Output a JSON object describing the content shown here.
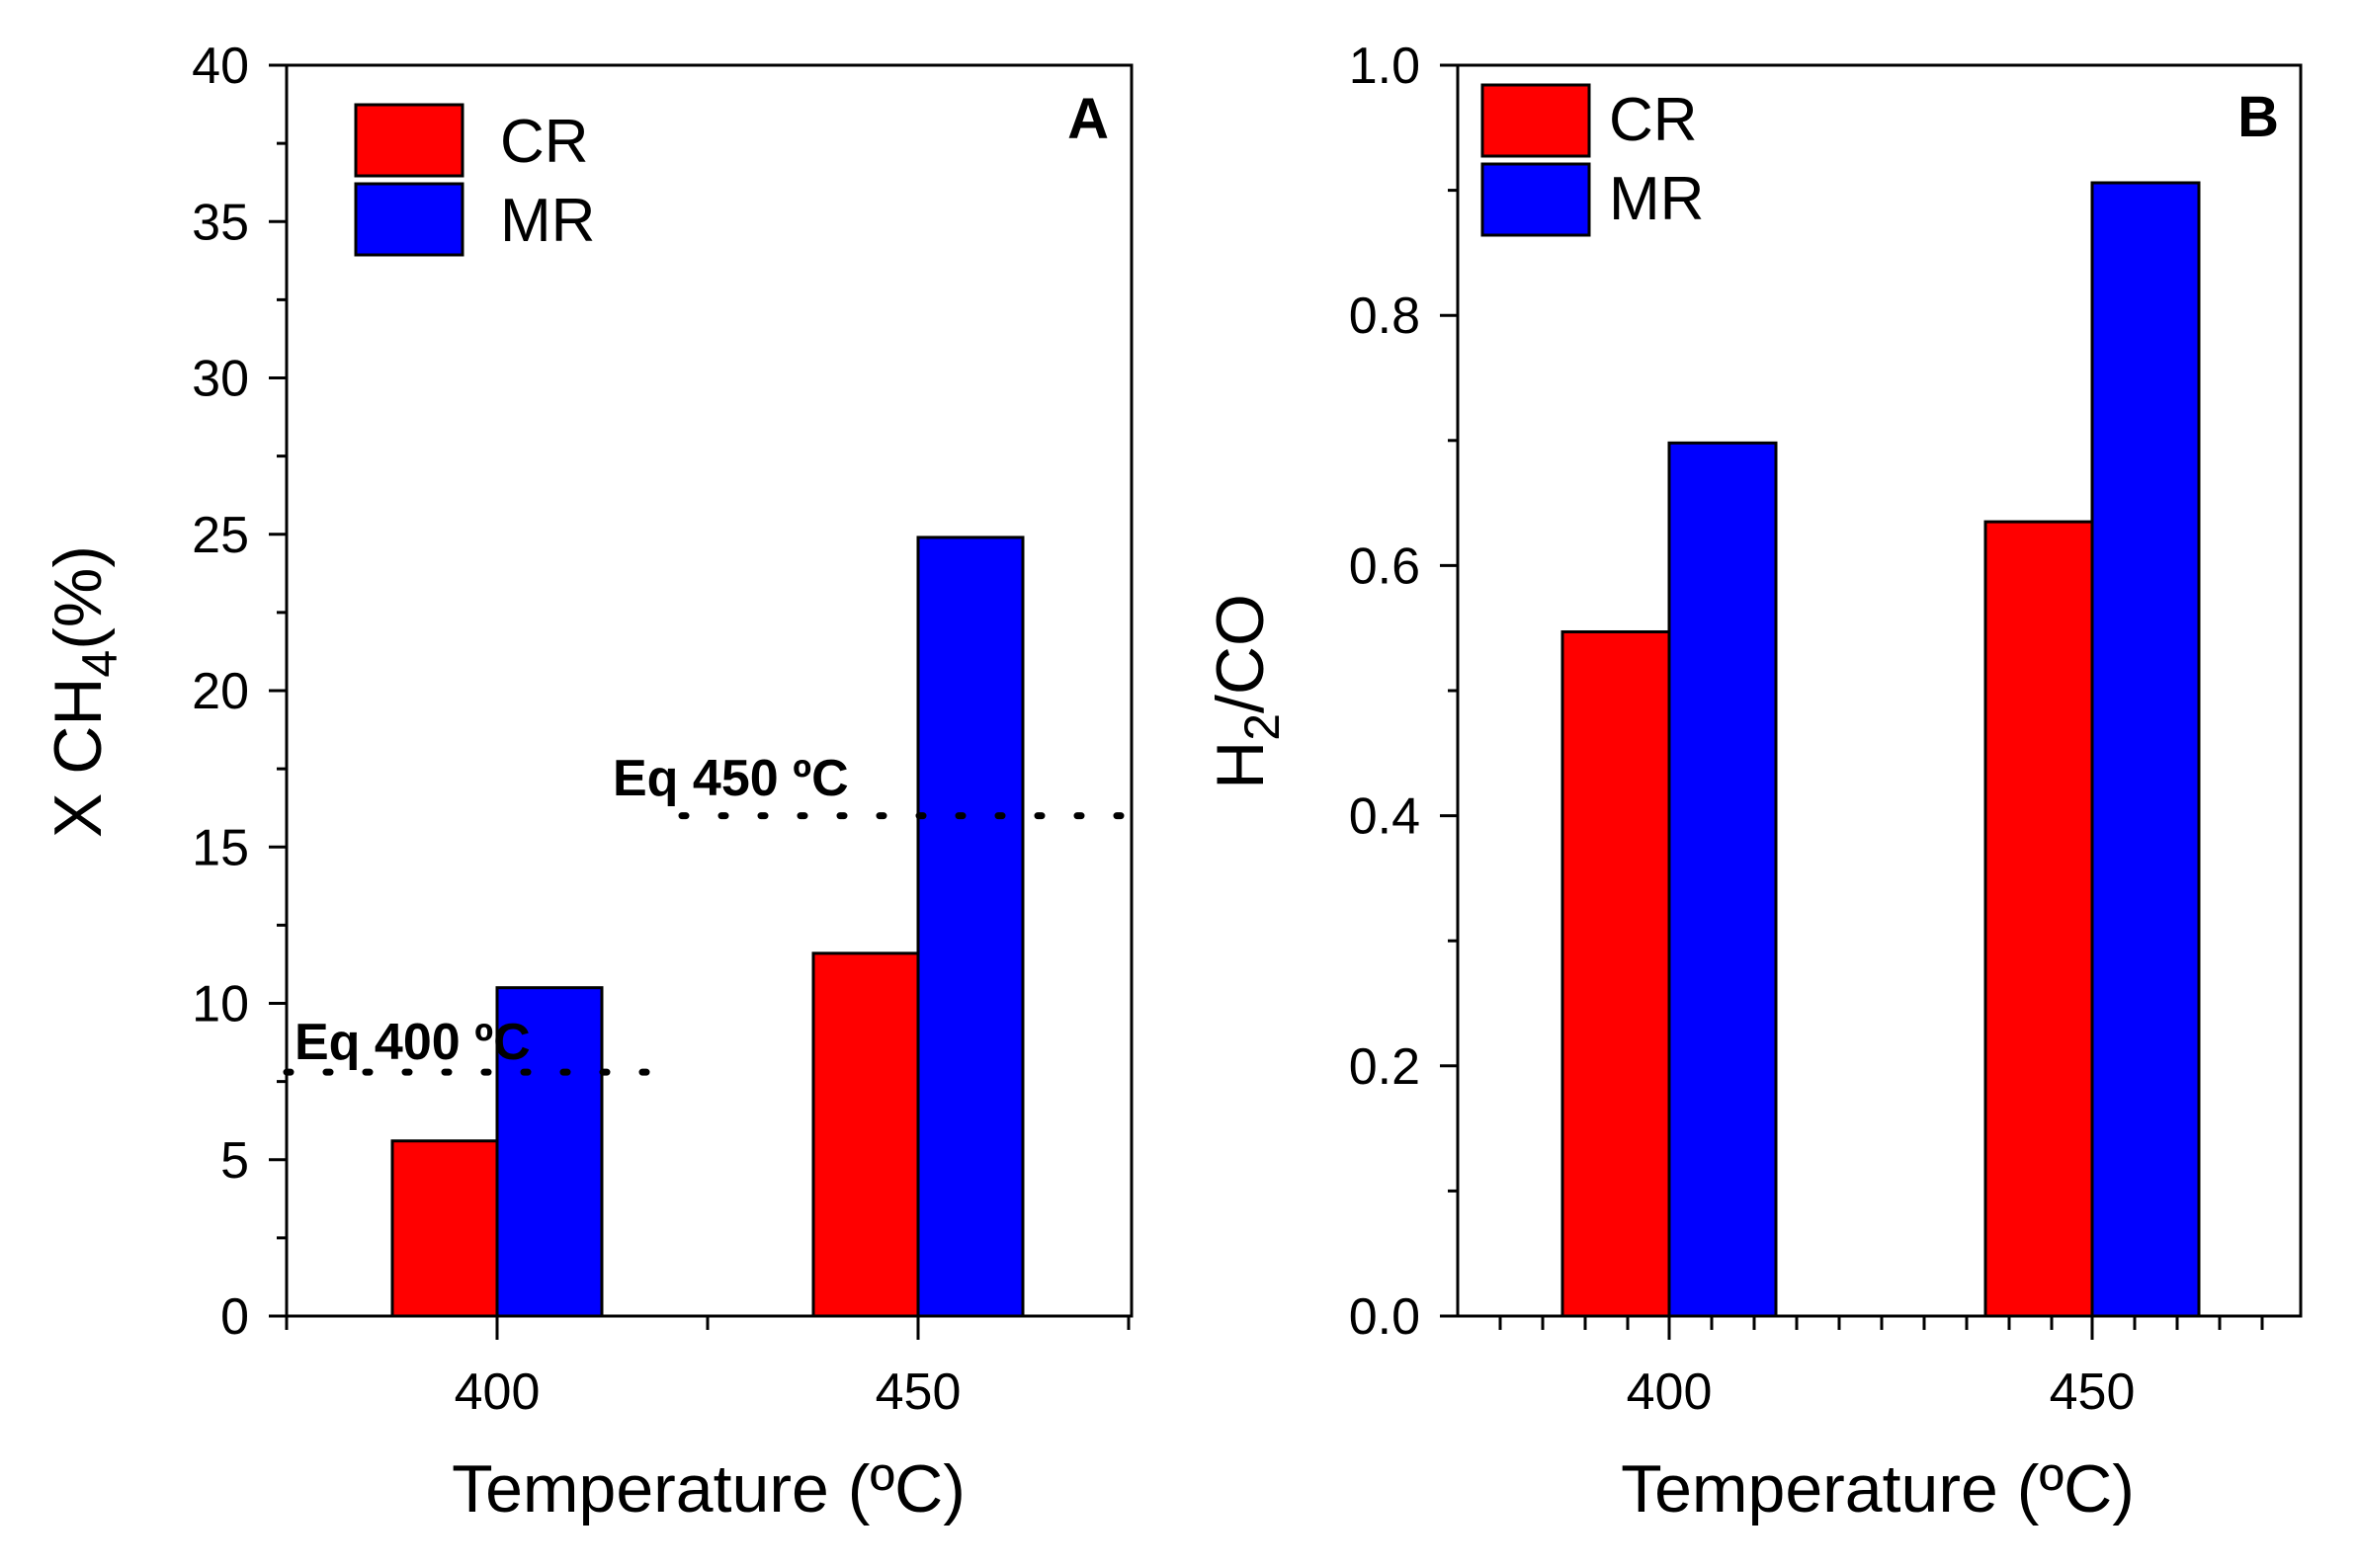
{
  "chart_data": [
    {
      "panel": "A",
      "type": "bar",
      "categories": [
        "400",
        "450"
      ],
      "series": [
        {
          "name": "CR",
          "color": "#ff0000",
          "values": [
            5.6,
            11.6
          ]
        },
        {
          "name": "MR",
          "color": "#0000ff",
          "values": [
            10.5,
            24.9
          ]
        }
      ],
      "xlabel": "Temperature (ºC)",
      "ylabel": "X CH4(%)",
      "ylabel_main": "X CH",
      "ylabel_sub": "4",
      "ylabel_tail": "(%)",
      "ylim": [
        0,
        40
      ],
      "yticks": [
        "0",
        "5",
        "10",
        "15",
        "20",
        "25",
        "30",
        "35",
        "40"
      ],
      "legend": [
        "CR",
        "MR"
      ],
      "legend_position": "top-left",
      "letter": "A",
      "annotations": [
        {
          "text": "Eq 400 ºC",
          "value": 7.8,
          "category": "400"
        },
        {
          "text": "Eq 450 ºC",
          "value": 16.0,
          "category": "450"
        }
      ]
    },
    {
      "panel": "B",
      "type": "bar",
      "categories": [
        "400",
        "450"
      ],
      "series": [
        {
          "name": "CR",
          "color": "#ff0000",
          "values": [
            0.547,
            0.635
          ]
        },
        {
          "name": "MR",
          "color": "#0000ff",
          "values": [
            0.698,
            0.906
          ]
        }
      ],
      "xlabel": "Temperature (ºC)",
      "ylabel": "H2/CO",
      "ylabel_main": "H",
      "ylabel_sub": "2",
      "ylabel_tail": "/CO",
      "ylim": [
        0,
        1.0
      ],
      "yticks": [
        "0.0",
        "0.2",
        "0.4",
        "0.6",
        "0.8",
        "1.0"
      ],
      "legend": [
        "CR",
        "MR"
      ],
      "legend_position": "top-left",
      "letter": "B",
      "annotations": []
    }
  ]
}
